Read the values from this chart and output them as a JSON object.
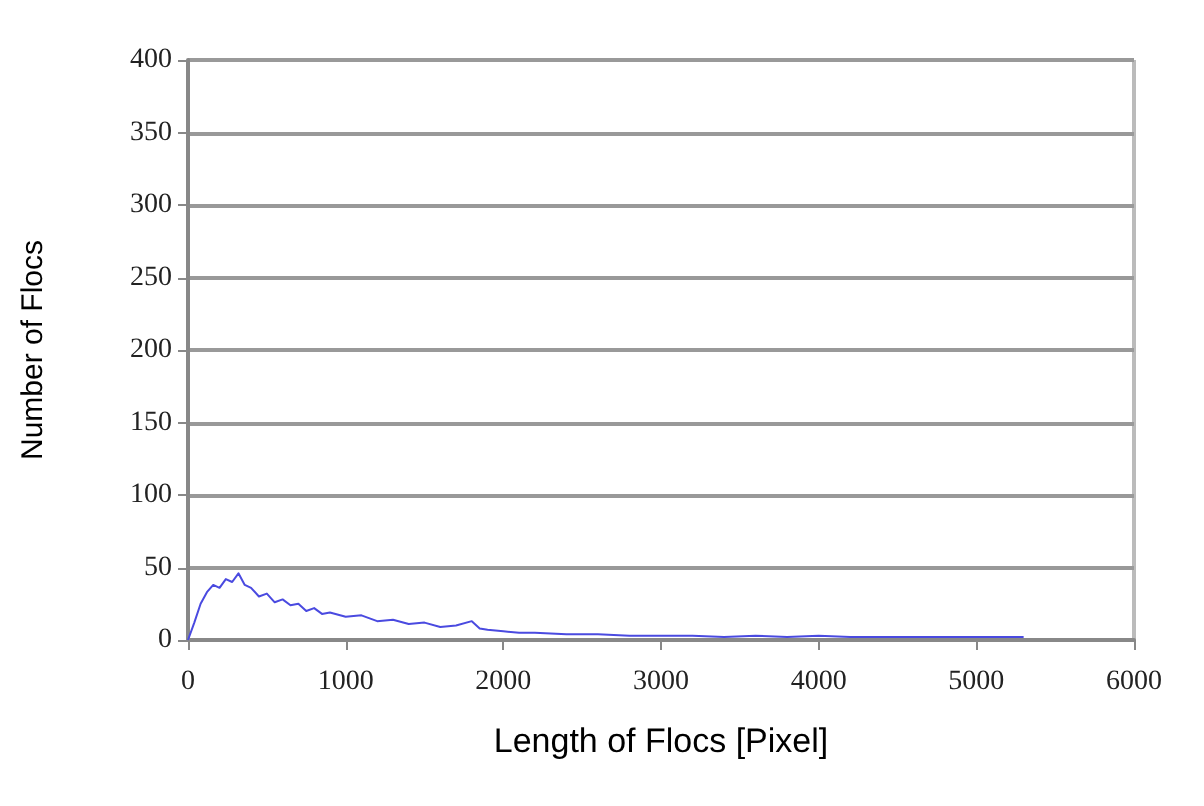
{
  "chart_data": {
    "type": "line",
    "xlabel": "Length of Flocs [Pixel]",
    "ylabel": "Number of Flocs",
    "xlim": [
      0,
      6000
    ],
    "xticks": [
      0,
      1000,
      2000,
      3000,
      4000,
      5000,
      6000
    ],
    "ylim": [
      0,
      400
    ],
    "yticks": [
      0,
      50,
      100,
      150,
      200,
      250,
      300,
      350,
      400
    ],
    "grid": "y",
    "marker": "none",
    "line_style": "solid",
    "series": [
      {
        "color": "#4a4ae0",
        "x": [
          0,
          40,
          80,
          120,
          160,
          200,
          240,
          280,
          320,
          360,
          400,
          450,
          500,
          550,
          600,
          650,
          700,
          750,
          800,
          850,
          900,
          1000,
          1100,
          1200,
          1300,
          1400,
          1500,
          1600,
          1700,
          1800,
          1850,
          1900,
          2000,
          2100,
          2200,
          2400,
          2600,
          2800,
          3000,
          3200,
          3400,
          3600,
          3800,
          4000,
          4200,
          4400,
          4600,
          4800,
          5000,
          5200,
          5300
        ],
        "values": [
          0,
          12,
          25,
          33,
          38,
          36,
          42,
          40,
          46,
          38,
          36,
          30,
          32,
          26,
          28,
          24,
          25,
          20,
          22,
          18,
          19,
          16,
          17,
          13,
          14,
          11,
          12,
          9,
          10,
          13,
          8,
          7,
          6,
          5,
          5,
          4,
          4,
          3,
          3,
          3,
          2,
          3,
          2,
          3,
          2,
          2,
          2,
          2,
          2,
          2,
          2
        ]
      }
    ]
  }
}
